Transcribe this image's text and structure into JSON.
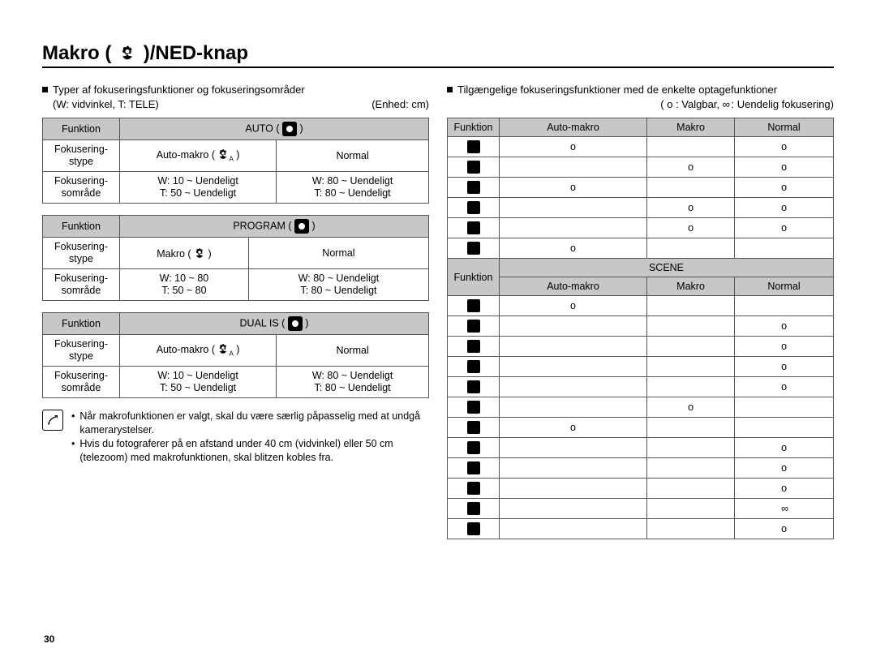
{
  "title_prefix": "Makro (",
  "title_suffix": " )/NED-knap",
  "page_number": "30",
  "colors": {
    "header_bg": "#c7c7c7",
    "border": "#555555",
    "text": "#000000",
    "background": "#ffffff"
  },
  "left": {
    "intro_line1_prefix": "Typer af fokuseringsfunktioner og fokuseringsområder",
    "intro_line2_left": "(W: vidvinkel, T: TELE)",
    "intro_line2_right": "(Enhed: cm)",
    "labels": {
      "funktion": "Funktion",
      "stype1": "Fokusering-",
      "stype2": "stype",
      "somrade1": "Fokusering-",
      "somrade2": "sområde"
    },
    "tables": [
      {
        "mode_label": "AUTO",
        "type_left": "Auto-makro (",
        "type_right": "Normal",
        "range_left_w": "W: 10 ~ Uendeligt",
        "range_left_t": "T: 50 ~ Uendeligt",
        "range_right_w": "W: 80 ~ Uendeligt",
        "range_right_t": "T: 80 ~ Uendeligt"
      },
      {
        "mode_label": "PROGRAM",
        "type_left": "Makro (",
        "type_right": "Normal",
        "range_left_w": "W: 10 ~ 80",
        "range_left_t": "T: 50 ~ 80",
        "range_right_w": "W: 80 ~ Uendeligt",
        "range_right_t": "T: 80 ~ Uendeligt"
      },
      {
        "mode_label": "DUAL IS",
        "type_left": "Auto-makro (",
        "type_right": "Normal",
        "range_left_w": "W: 10 ~ Uendeligt",
        "range_left_t": "T: 50 ~ Uendeligt",
        "range_right_w": "W: 80 ~ Uendeligt",
        "range_right_t": "T: 80 ~ Uendeligt"
      }
    ],
    "notes": {
      "n1": "Når makrofunktionen er valgt, skal du være særlig påpasselig med at undgå kamerarystelser.",
      "n2": "Hvis du fotograferer på en afstand under 40 cm (vidvinkel) eller 50 cm (telezoom) med makrofunktionen, skal blitzen kobles fra."
    }
  },
  "right": {
    "intro": "Tilgængelige fokuseringsfunktioner med de enkelte optagefunktioner",
    "legend_prefix": "( o : Valgbar, ",
    "legend_inf": "∞",
    "legend_suffix": " : Uendelig fokusering)",
    "headers": {
      "funktion": "Funktion",
      "automakro": "Auto-makro",
      "makro": "Makro",
      "normal": "Normal",
      "scene": "SCENE"
    },
    "top_rows": [
      {
        "am": "o",
        "mk": "",
        "nm": "o"
      },
      {
        "am": "",
        "mk": "o",
        "nm": "o"
      },
      {
        "am": "o",
        "mk": "",
        "nm": "o"
      },
      {
        "am": "",
        "mk": "o",
        "nm": "o"
      },
      {
        "am": "",
        "mk": "o",
        "nm": "o"
      },
      {
        "am": "o",
        "mk": "",
        "nm": ""
      }
    ],
    "scene_rows": [
      {
        "am": "o",
        "mk": "",
        "nm": ""
      },
      {
        "am": "",
        "mk": "",
        "nm": "o"
      },
      {
        "am": "",
        "mk": "",
        "nm": "o"
      },
      {
        "am": "",
        "mk": "",
        "nm": "o"
      },
      {
        "am": "",
        "mk": "",
        "nm": "o"
      },
      {
        "am": "",
        "mk": "o",
        "nm": ""
      },
      {
        "am": "o",
        "mk": "",
        "nm": ""
      },
      {
        "am": "",
        "mk": "",
        "nm": "o"
      },
      {
        "am": "",
        "mk": "",
        "nm": "o"
      },
      {
        "am": "",
        "mk": "",
        "nm": "o"
      },
      {
        "am": "",
        "mk": "",
        "nm": "∞"
      },
      {
        "am": "",
        "mk": "",
        "nm": "o"
      }
    ]
  }
}
